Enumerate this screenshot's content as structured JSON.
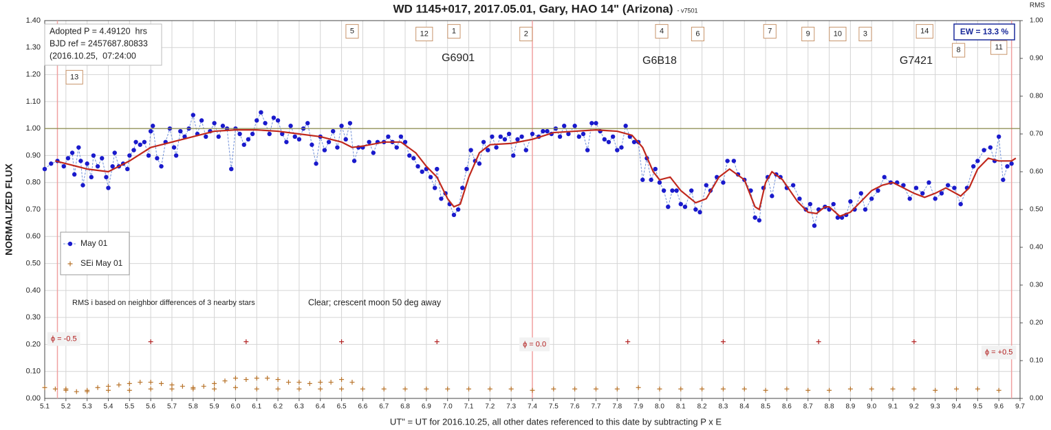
{
  "chart_data": {
    "type": "scatter",
    "title": "WD 1145+017, 2017.05.01, Gary, HAO 14\" (Arizona)",
    "subtitle": "- v7501",
    "x_label": "UT\" = UT for 2016.10.25, all other dates referenced to this date by subtracting P x E",
    "y_label": "NORMALIZED FLUX",
    "y2_label": "RMS",
    "xlim": [
      5.1,
      9.7
    ],
    "ylim": [
      0,
      1.4
    ],
    "y2lim": [
      0,
      1.0
    ],
    "grid": true,
    "xticks": [
      5.1,
      5.2,
      5.3,
      5.4,
      5.5,
      5.6,
      5.7,
      5.8,
      5.9,
      {
        "value": 6,
        "label": "6.0"
      },
      6.1,
      6.2,
      6.3,
      6.4,
      6.5,
      6.6,
      6.7,
      6.8,
      6.9,
      {
        "value": 7,
        "label": "7.0"
      },
      7.1,
      7.2,
      7.3,
      7.4,
      7.5,
      7.6,
      7.7,
      7.8,
      7.9,
      {
        "value": 8,
        "label": "8.0"
      },
      8.1,
      8.2,
      8.3,
      8.4,
      8.5,
      8.6,
      8.7,
      8.8,
      8.9,
      {
        "value": 9,
        "label": "9.0"
      },
      9.1,
      9.2,
      9.3,
      9.4,
      9.5,
      9.6,
      9.7
    ],
    "yticks": [
      {
        "value": 0,
        "label": "0.00"
      },
      {
        "value": 0.1,
        "label": "0.10"
      },
      {
        "value": 0.2,
        "label": "0.20"
      },
      {
        "value": 0.3,
        "label": "0.30"
      },
      {
        "value": 0.4,
        "label": "0.40"
      },
      {
        "value": 0.5,
        "label": "0.50"
      },
      {
        "value": 0.6,
        "label": "0.60"
      },
      {
        "value": 0.7,
        "label": "0.70"
      },
      {
        "value": 0.8,
        "label": "0.80"
      },
      {
        "value": 0.9,
        "label": "0.90"
      },
      {
        "value": 1.0,
        "label": "1.00"
      },
      {
        "value": 1.1,
        "label": "1.10"
      },
      {
        "value": 1.2,
        "label": "1.20"
      },
      {
        "value": 1.3,
        "label": "1.30"
      },
      {
        "value": 1.4,
        "label": "1.40"
      }
    ],
    "y2ticks": [
      {
        "value": 0,
        "label": "0.00"
      },
      {
        "value": 0.1,
        "label": "0.10"
      },
      {
        "value": 0.2,
        "label": "0.20"
      },
      {
        "value": 0.3,
        "label": "0.30"
      },
      {
        "value": 0.4,
        "label": "0.40"
      },
      {
        "value": 0.5,
        "label": "0.50"
      },
      {
        "value": 0.6,
        "label": "0.60"
      },
      {
        "value": 0.7,
        "label": "0.70"
      },
      {
        "value": 0.8,
        "label": "0.80"
      },
      {
        "value": 0.9,
        "label": "0.90"
      },
      {
        "value": 1.0,
        "label": "1.00"
      }
    ],
    "series": [
      {
        "name": "May 01",
        "color": "#1a1acc",
        "line_color": "#6f8fd8",
        "line": "dashed",
        "marker": "circle",
        "legend": true,
        "x": [
          5.1,
          5.13,
          5.16,
          5.19,
          5.21,
          5.23,
          5.24,
          5.26,
          5.27,
          5.28,
          5.3,
          5.32,
          5.33,
          5.35,
          5.37,
          5.39,
          5.4,
          5.42,
          5.43,
          5.45,
          5.47,
          5.49,
          5.5,
          5.52,
          5.53,
          5.55,
          5.57,
          5.59,
          5.6,
          5.61,
          5.63,
          5.65,
          5.67,
          5.69,
          5.71,
          5.72,
          5.74,
          5.76,
          5.78,
          5.8,
          5.82,
          5.84,
          5.86,
          5.88,
          5.9,
          5.92,
          5.94,
          5.96,
          5.98,
          6.0,
          6.02,
          6.04,
          6.06,
          6.08,
          6.1,
          6.12,
          6.14,
          6.16,
          6.18,
          6.2,
          6.22,
          6.24,
          6.26,
          6.28,
          6.3,
          6.32,
          6.34,
          6.36,
          6.38,
          6.4,
          6.42,
          6.44,
          6.46,
          6.48,
          6.5,
          6.52,
          6.54,
          6.56,
          6.58,
          6.6,
          6.63,
          6.65,
          6.67,
          6.7,
          6.72,
          6.74,
          6.76,
          6.78,
          6.8,
          6.82,
          6.84,
          6.86,
          6.88,
          6.9,
          6.92,
          6.94,
          6.95,
          6.97,
          6.99,
          7.01,
          7.03,
          7.05,
          7.07,
          7.09,
          7.11,
          7.13,
          7.15,
          7.17,
          7.19,
          7.21,
          7.23,
          7.25,
          7.27,
          7.29,
          7.31,
          7.33,
          7.35,
          7.37,
          7.4,
          7.43,
          7.45,
          7.47,
          7.49,
          7.51,
          7.53,
          7.55,
          7.57,
          7.6,
          7.62,
          7.64,
          7.66,
          7.68,
          7.7,
          7.72,
          7.74,
          7.76,
          7.78,
          7.8,
          7.82,
          7.84,
          7.86,
          7.88,
          7.9,
          7.92,
          7.94,
          7.96,
          7.98,
          8.0,
          8.02,
          8.04,
          8.06,
          8.08,
          8.1,
          8.12,
          8.15,
          8.17,
          8.19,
          8.22,
          8.24,
          8.27,
          8.3,
          8.32,
          8.35,
          8.37,
          8.4,
          8.43,
          8.45,
          8.47,
          8.49,
          8.51,
          8.53,
          8.55,
          8.57,
          8.6,
          8.63,
          8.66,
          8.69,
          8.71,
          8.73,
          8.75,
          8.78,
          8.8,
          8.82,
          8.84,
          8.86,
          8.88,
          8.9,
          8.92,
          8.95,
          8.97,
          9.0,
          9.03,
          9.06,
          9.09,
          9.12,
          9.15,
          9.18,
          9.21,
          9.24,
          9.27,
          9.3,
          9.33,
          9.36,
          9.39,
          9.42,
          9.45,
          9.48,
          9.5,
          9.53,
          9.56,
          9.58,
          9.6,
          9.62,
          9.64,
          9.66
        ],
        "values": [
          0.85,
          0.87,
          0.88,
          0.86,
          0.89,
          0.91,
          0.83,
          0.93,
          0.88,
          0.79,
          0.87,
          0.82,
          0.9,
          0.86,
          0.89,
          0.82,
          0.78,
          0.86,
          0.91,
          0.86,
          0.87,
          0.85,
          0.9,
          0.92,
          0.95,
          0.94,
          0.95,
          0.9,
          0.99,
          1.01,
          0.89,
          0.86,
          0.95,
          1.0,
          0.93,
          0.9,
          0.99,
          0.97,
          1.0,
          1.05,
          0.98,
          1.03,
          0.97,
          0.99,
          1.02,
          0.97,
          1.01,
          1.0,
          0.85,
          1.0,
          0.98,
          0.94,
          0.96,
          0.98,
          1.03,
          1.06,
          1.02,
          0.98,
          1.04,
          1.03,
          0.98,
          0.95,
          1.01,
          0.97,
          0.96,
          1.0,
          1.02,
          0.94,
          0.87,
          0.97,
          0.92,
          0.95,
          0.99,
          0.93,
          1.01,
          0.96,
          1.02,
          0.88,
          0.93,
          0.93,
          0.95,
          0.91,
          0.95,
          0.95,
          0.97,
          0.95,
          0.93,
          0.97,
          0.95,
          0.9,
          0.89,
          0.86,
          0.84,
          0.85,
          0.82,
          0.78,
          0.85,
          0.74,
          0.76,
          0.72,
          0.68,
          0.7,
          0.78,
          0.85,
          0.92,
          0.88,
          0.87,
          0.95,
          0.92,
          0.97,
          0.93,
          0.97,
          0.96,
          0.98,
          0.9,
          0.96,
          0.97,
          0.92,
          0.98,
          0.97,
          0.99,
          0.99,
          0.98,
          1.0,
          0.97,
          1.01,
          0.98,
          1.01,
          0.97,
          0.98,
          0.92,
          1.02,
          1.02,
          0.99,
          0.96,
          0.95,
          0.97,
          0.92,
          0.93,
          1.01,
          0.97,
          0.95,
          0.95,
          0.81,
          0.89,
          0.81,
          0.85,
          0.8,
          0.77,
          0.71,
          0.77,
          0.77,
          0.72,
          0.71,
          0.77,
          0.7,
          0.69,
          0.79,
          0.77,
          0.82,
          0.8,
          0.88,
          0.88,
          0.83,
          0.81,
          0.77,
          0.67,
          0.66,
          0.78,
          0.82,
          0.75,
          0.83,
          0.82,
          0.78,
          0.79,
          0.74,
          0.7,
          0.72,
          0.64,
          0.7,
          0.71,
          0.7,
          0.72,
          0.67,
          0.67,
          0.68,
          0.73,
          0.7,
          0.76,
          0.7,
          0.74,
          0.77,
          0.82,
          0.8,
          0.8,
          0.79,
          0.74,
          0.78,
          0.76,
          0.8,
          0.74,
          0.76,
          0.79,
          0.78,
          0.72,
          0.78,
          0.86,
          0.88,
          0.92,
          0.93,
          0.88,
          0.97,
          0.81,
          0.86,
          0.87
        ]
      },
      {
        "name": "SEi May 01",
        "color": "#b8732a",
        "line": "none",
        "marker": "plus",
        "legend": true,
        "axis": "y",
        "x": [
          5.1,
          5.2,
          5.3,
          5.4,
          5.5,
          5.6,
          5.7,
          5.8,
          5.9,
          6.0,
          6.1,
          6.2,
          6.3,
          6.4,
          6.5,
          6.6,
          6.7,
          6.8,
          6.9,
          7.0,
          7.1,
          7.2,
          7.3,
          7.4,
          7.5,
          7.6,
          7.7,
          7.8,
          7.9,
          8.0,
          8.1,
          8.2,
          8.3,
          8.4,
          8.5,
          8.6,
          8.7,
          8.8,
          8.9,
          9.0,
          9.1,
          9.2,
          9.3,
          9.4,
          9.5,
          9.6,
          5.15,
          5.2,
          5.25,
          5.3,
          5.35,
          5.4,
          5.45,
          5.5,
          5.55,
          5.6,
          5.65,
          5.7,
          5.75,
          5.8,
          5.85,
          5.9,
          5.95,
          6.0,
          6.05,
          6.1,
          6.15,
          6.2,
          6.25,
          6.3,
          6.35,
          6.4,
          6.45,
          6.5,
          6.55
        ],
        "values": [
          0.04,
          0.035,
          0.025,
          0.03,
          0.03,
          0.035,
          0.035,
          0.035,
          0.035,
          0.04,
          0.035,
          0.035,
          0.035,
          0.035,
          0.035,
          0.035,
          0.035,
          0.035,
          0.035,
          0.035,
          0.035,
          0.035,
          0.035,
          0.03,
          0.035,
          0.035,
          0.035,
          0.035,
          0.04,
          0.035,
          0.035,
          0.035,
          0.035,
          0.035,
          0.03,
          0.035,
          0.03,
          0.03,
          0.035,
          0.035,
          0.035,
          0.035,
          0.03,
          0.035,
          0.035,
          0.03,
          0.035,
          0.03,
          0.025,
          0.03,
          0.04,
          0.045,
          0.05,
          0.055,
          0.06,
          0.06,
          0.055,
          0.05,
          0.045,
          0.04,
          0.045,
          0.055,
          0.065,
          0.075,
          0.07,
          0.075,
          0.075,
          0.07,
          0.06,
          0.06,
          0.055,
          0.06,
          0.06,
          0.07,
          0.06
        ]
      },
      {
        "color": "#c0281c",
        "line": "solid",
        "marker": "none",
        "width": 2.2,
        "x": [
          5.15,
          5.2,
          5.3,
          5.4,
          5.5,
          5.6,
          5.7,
          5.8,
          5.9,
          6.0,
          6.1,
          6.2,
          6.3,
          6.4,
          6.5,
          6.55,
          6.6,
          6.7,
          6.78,
          6.85,
          6.9,
          6.95,
          7.0,
          7.03,
          7.06,
          7.1,
          7.15,
          7.2,
          7.3,
          7.4,
          7.5,
          7.6,
          7.7,
          7.8,
          7.87,
          7.92,
          7.97,
          8.0,
          8.05,
          8.1,
          8.17,
          8.22,
          8.28,
          8.33,
          8.4,
          8.45,
          8.47,
          8.5,
          8.53,
          8.58,
          8.65,
          8.7,
          8.74,
          8.78,
          8.8,
          8.85,
          8.9,
          8.95,
          9.0,
          9.05,
          9.1,
          9.15,
          9.2,
          9.25,
          9.3,
          9.35,
          9.42,
          9.46,
          9.5,
          9.55,
          9.6,
          9.66,
          9.68
        ],
        "values": [
          0.88,
          0.87,
          0.85,
          0.84,
          0.88,
          0.93,
          0.95,
          0.97,
          0.99,
          0.995,
          0.995,
          0.99,
          0.98,
          0.97,
          0.95,
          0.93,
          0.935,
          0.95,
          0.95,
          0.91,
          0.86,
          0.82,
          0.74,
          0.71,
          0.72,
          0.82,
          0.91,
          0.94,
          0.945,
          0.96,
          0.985,
          0.99,
          0.995,
          0.99,
          0.975,
          0.93,
          0.84,
          0.81,
          0.82,
          0.77,
          0.725,
          0.74,
          0.82,
          0.85,
          0.81,
          0.71,
          0.7,
          0.8,
          0.84,
          0.81,
          0.73,
          0.69,
          0.685,
          0.71,
          0.71,
          0.675,
          0.69,
          0.73,
          0.77,
          0.79,
          0.8,
          0.78,
          0.76,
          0.745,
          0.76,
          0.78,
          0.75,
          0.78,
          0.85,
          0.89,
          0.88,
          0.88,
          0.89
        ]
      },
      {
        "color": "#8a8a4a",
        "line": "solid",
        "marker": "none",
        "width": 1.2,
        "x": [
          5.1,
          9.7
        ],
        "values": [
          1.0,
          1.0
        ]
      }
    ],
    "hour_marks": {
      "color": "#b22222",
      "x": [
        5.6,
        6.05,
        6.5,
        6.95,
        7.85,
        8.3,
        8.75,
        9.2
      ],
      "values": [
        0.21,
        0.21,
        0.21,
        0.21,
        0.21,
        0.21,
        0.21,
        0.21
      ]
    },
    "phase_lines": {
      "color": "#f0a0a0",
      "x": [
        5.16,
        7.4,
        9.66
      ]
    },
    "annotations": [
      {
        "text": "5",
        "x": 6.55,
        "y": 1.36,
        "style": "box"
      },
      {
        "text": "12",
        "x": 6.89,
        "y": 1.35,
        "style": "box"
      },
      {
        "text": "1",
        "x": 7.03,
        "y": 1.36,
        "style": "box"
      },
      {
        "text": "2",
        "x": 7.37,
        "y": 1.35,
        "style": "box"
      },
      {
        "text": "4",
        "x": 8.01,
        "y": 1.36,
        "style": "box"
      },
      {
        "text": "6",
        "x": 8.18,
        "y": 1.35,
        "style": "box"
      },
      {
        "text": "7",
        "x": 8.52,
        "y": 1.36,
        "style": "box"
      },
      {
        "text": "9",
        "x": 8.7,
        "y": 1.35,
        "style": "box"
      },
      {
        "text": "10",
        "x": 8.84,
        "y": 1.35,
        "style": "box"
      },
      {
        "text": "3",
        "x": 8.97,
        "y": 1.35,
        "style": "box"
      },
      {
        "text": "14",
        "x": 9.25,
        "y": 1.36,
        "style": "box"
      },
      {
        "text": "8",
        "x": 9.41,
        "y": 1.29,
        "style": "box"
      },
      {
        "text": "11",
        "x": 9.6,
        "y": 1.3,
        "style": "box"
      },
      {
        "text": "13",
        "x": 5.24,
        "y": 1.19,
        "style": "box"
      },
      {
        "text": "G6901",
        "x": 7.05,
        "y": 1.26,
        "style": "plain"
      },
      {
        "text": "G6B18",
        "x": 8.0,
        "y": 1.25,
        "style": "plain"
      },
      {
        "text": "G7421",
        "x": 9.21,
        "y": 1.25,
        "style": "plain"
      },
      {
        "text": "ϕ = -0.5",
        "x": 5.19,
        "y": 0.22,
        "style": "phase"
      },
      {
        "text": "ϕ = 0.0",
        "x": 7.41,
        "y": 0.2,
        "style": "phase"
      },
      {
        "text": "ϕ = +0.5",
        "x": 9.6,
        "y": 0.17,
        "style": "phase"
      }
    ],
    "info": [
      "Adopted P = 4.49120  hrs",
      "BJD ref = 2457687.80833",
      "(2016.10.25,  07:24:00"
    ],
    "ew": "EW = 13.3 %",
    "notes": [
      "RMS i based on neighbor differences of 3 nearby stars",
      "Clear; crescent moon 50 deg away"
    ]
  }
}
